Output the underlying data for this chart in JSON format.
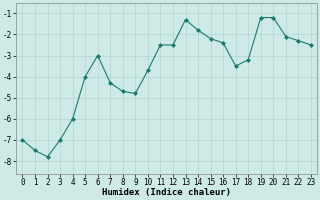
{
  "x": [
    0,
    1,
    2,
    3,
    4,
    5,
    6,
    7,
    8,
    9,
    10,
    11,
    12,
    13,
    14,
    15,
    16,
    17,
    18,
    19,
    20,
    21,
    22,
    23
  ],
  "y": [
    -7.0,
    -7.5,
    -7.8,
    -7.0,
    -6.0,
    -4.0,
    -3.0,
    -4.3,
    -4.7,
    -4.8,
    -3.7,
    -2.5,
    -2.5,
    -1.3,
    -1.8,
    -2.2,
    -2.4,
    -3.5,
    -3.2,
    -1.2,
    -1.2,
    -2.1,
    -2.3,
    -2.5
  ],
  "xlabel": "Humidex (Indice chaleur)",
  "xlim": [
    -0.5,
    23.5
  ],
  "ylim": [
    -8.6,
    -0.5
  ],
  "yticks": [
    -8,
    -7,
    -6,
    -5,
    -4,
    -3,
    -2,
    -1
  ],
  "xticks": [
    0,
    1,
    2,
    3,
    4,
    5,
    6,
    7,
    8,
    9,
    10,
    11,
    12,
    13,
    14,
    15,
    16,
    17,
    18,
    19,
    20,
    21,
    22,
    23
  ],
  "line_color": "#1a7a6e",
  "marker": "D",
  "marker_size": 2.0,
  "bg_color": "#ceeae6",
  "grid_color": "#b0d4cf",
  "label_fontsize": 6.5,
  "tick_fontsize": 5.5
}
